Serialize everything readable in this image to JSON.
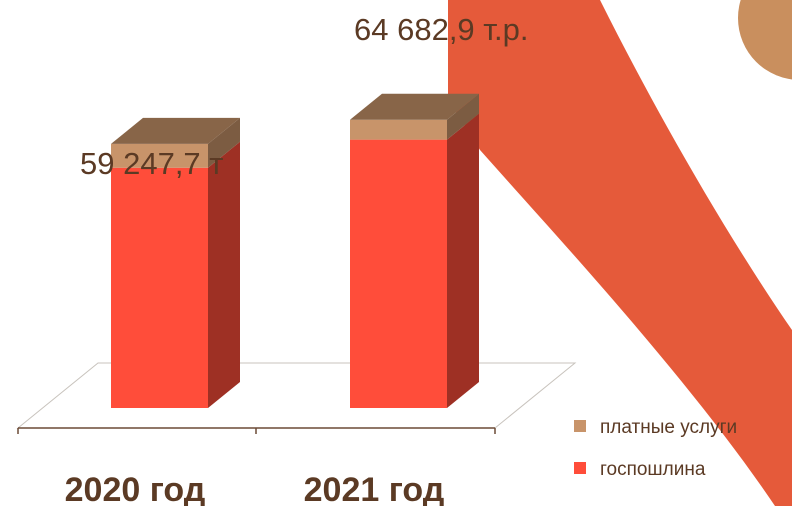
{
  "chart_data": {
    "type": "bar",
    "stacked": true,
    "style": "3d-column",
    "categories": [
      "2020 год",
      "2021 год"
    ],
    "series": [
      {
        "name": "госпошлина",
        "color": "#ff4d3a",
        "values": [
          53900,
          60200
        ]
      },
      {
        "name": "платные услуги",
        "color": "#c8946a",
        "values": [
          5347.7,
          4482.9
        ]
      }
    ],
    "totals": [
      59247.7,
      64682.9
    ],
    "data_labels": [
      "59 247,7 т",
      "64 682,9 т.р."
    ],
    "ylim": [
      0,
      70000
    ],
    "grid": false,
    "legend_position": "right-bottom",
    "title": "",
    "xlabel": "",
    "ylabel": ""
  },
  "decoration": {
    "swoosh_color": "#e55a3a",
    "accent_circle_color": "#c98f5e"
  }
}
